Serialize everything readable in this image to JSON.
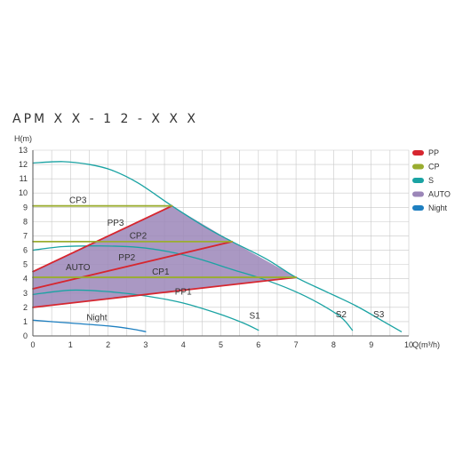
{
  "page": {
    "model": "APM X X - 1 2 - X X X"
  },
  "chart_data": {
    "type": "line",
    "xlabel": "Q(m³/h)",
    "ylabel": "H(m)",
    "xlim": [
      0,
      10
    ],
    "ylim": [
      0,
      13
    ],
    "xticks": [
      "0",
      "1",
      "2",
      "3",
      "4",
      "5",
      "6",
      "7",
      "8",
      "9",
      "10"
    ],
    "yticks": [
      "0",
      "1",
      "2",
      "3",
      "4",
      "5",
      "6",
      "7",
      "8",
      "9",
      "10",
      "11",
      "12",
      "13"
    ],
    "grid": true,
    "legend_position": "right",
    "colors": {
      "PP": "#d6262f",
      "CP": "#9aad30",
      "S": "#1aa3a3",
      "AUTO": "#9b86b8",
      "Night": "#1e7fc0"
    },
    "legend": [
      {
        "key": "PP",
        "label": "PP"
      },
      {
        "key": "CP",
        "label": "CP"
      },
      {
        "key": "S",
        "label": "S"
      },
      {
        "key": "AUTO",
        "label": "AUTO"
      },
      {
        "key": "Night",
        "label": "Night"
      }
    ],
    "auto_region": {
      "label": "AUTO",
      "label_at": [
        1.2,
        4.6
      ],
      "points": [
        [
          0,
          2
        ],
        [
          0,
          4.5
        ],
        [
          3.7,
          9.1
        ],
        [
          5.3,
          6.6
        ],
        [
          7,
          4.1
        ],
        [
          0,
          2
        ]
      ]
    },
    "series": [
      {
        "name": "S3",
        "group": "S",
        "points": [
          [
            0,
            12.1
          ],
          [
            0.8,
            12.2
          ],
          [
            1.5,
            12
          ],
          [
            2.1,
            11.6
          ],
          [
            2.8,
            10.7
          ],
          [
            3.7,
            9.1
          ],
          [
            4.6,
            7.6
          ],
          [
            5.3,
            6.6
          ],
          [
            6.2,
            5.4
          ],
          [
            7,
            4.1
          ],
          [
            7.8,
            3.1
          ],
          [
            8.6,
            2.1
          ],
          [
            9.4,
            0.9
          ],
          [
            9.8,
            0.3
          ]
        ],
        "label_at": [
          9.2,
          1.3
        ]
      },
      {
        "name": "S2",
        "group": "S",
        "points": [
          [
            0,
            6
          ],
          [
            0.8,
            6.25
          ],
          [
            1.8,
            6.3
          ],
          [
            2.8,
            6.2
          ],
          [
            3.6,
            5.9
          ],
          [
            4.4,
            5.4
          ],
          [
            5.3,
            4.65
          ],
          [
            6.1,
            4
          ],
          [
            6.9,
            3.2
          ],
          [
            7.6,
            2.3
          ],
          [
            8.2,
            1.3
          ],
          [
            8.5,
            0.4
          ]
        ],
        "label_at": [
          8.2,
          1.3
        ]
      },
      {
        "name": "S1",
        "group": "S",
        "points": [
          [
            0,
            2.9
          ],
          [
            1,
            3.2
          ],
          [
            2,
            3.1
          ],
          [
            3,
            2.8
          ],
          [
            4,
            2.3
          ],
          [
            5,
            1.5
          ],
          [
            5.6,
            0.9
          ],
          [
            6,
            0.4
          ]
        ],
        "label_at": [
          5.9,
          1.2
        ]
      },
      {
        "name": "Night",
        "group": "Night",
        "points": [
          [
            0,
            1.1
          ],
          [
            1,
            0.9
          ],
          [
            2,
            0.7
          ],
          [
            2.6,
            0.5
          ],
          [
            3,
            0.3
          ]
        ],
        "label_at": [
          1.7,
          1.1
        ]
      },
      {
        "name": "PP3",
        "group": "PP",
        "points": [
          [
            0,
            4.5
          ],
          [
            3.7,
            9.1
          ]
        ],
        "label_at": [
          2.2,
          7.7
        ]
      },
      {
        "name": "PP2",
        "group": "PP",
        "points": [
          [
            0,
            3.3
          ],
          [
            5.3,
            6.6
          ]
        ],
        "label_at": [
          2.5,
          5.3
        ]
      },
      {
        "name": "PP1",
        "group": "PP",
        "points": [
          [
            0,
            2
          ],
          [
            7,
            4.1
          ]
        ],
        "label_at": [
          4.0,
          2.9
        ]
      },
      {
        "name": "CP3",
        "group": "CP",
        "points": [
          [
            0,
            9.1
          ],
          [
            3.7,
            9.1
          ]
        ],
        "label_at": [
          1.2,
          9.3
        ]
      },
      {
        "name": "CP2",
        "group": "CP",
        "points": [
          [
            0,
            6.6
          ],
          [
            5.3,
            6.6
          ]
        ],
        "label_at": [
          2.8,
          6.8
        ]
      },
      {
        "name": "CP1",
        "group": "CP",
        "points": [
          [
            0,
            4.1
          ],
          [
            7,
            4.1
          ]
        ],
        "label_at": [
          3.4,
          4.3
        ]
      }
    ]
  }
}
